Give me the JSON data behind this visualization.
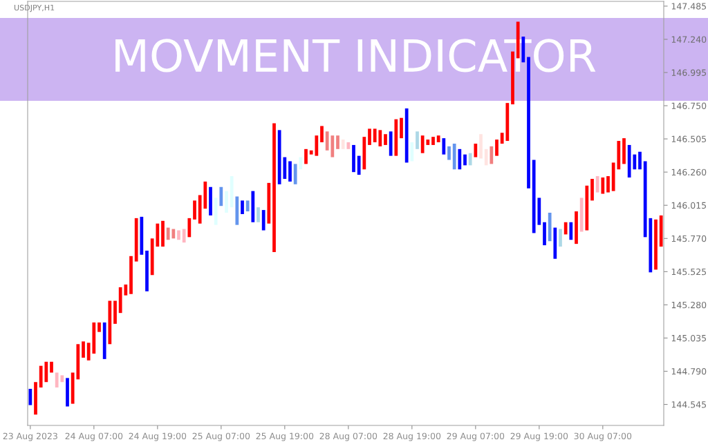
{
  "chart_data": {
    "type": "bar",
    "title": "MOVMENT INDICATOR",
    "subtitle": "USDJPY,H1",
    "categories": [
      "23 Aug 2023",
      null,
      null,
      null,
      null,
      null,
      null,
      null,
      null,
      null,
      null,
      null,
      "24 Aug 07:00",
      null,
      null,
      null,
      null,
      null,
      null,
      null,
      null,
      null,
      null,
      null,
      "24 Aug 19:00",
      null,
      null,
      null,
      null,
      null,
      null,
      null,
      null,
      null,
      null,
      null,
      "25 Aug 07:00",
      null,
      null,
      null,
      null,
      null,
      null,
      null,
      null,
      null,
      null,
      null,
      "25 Aug 19:00",
      null,
      null,
      null,
      null,
      null,
      null,
      null,
      null,
      null,
      null,
      null,
      "28 Aug 07:00",
      null,
      null,
      null,
      null,
      null,
      null,
      null,
      null,
      null,
      null,
      null,
      "28 Aug 19:00",
      null,
      null,
      null,
      null,
      null,
      null,
      null,
      null,
      null,
      null,
      null,
      "29 Aug 07:00",
      null,
      null,
      null,
      null,
      null,
      null,
      null,
      null,
      null,
      null,
      null,
      "29 Aug 19:00",
      null,
      null,
      null,
      null,
      null,
      null,
      null,
      null,
      null,
      null,
      null,
      "30 Aug 07:00",
      null,
      null,
      null,
      null,
      null,
      null,
      null,
      null,
      null,
      null,
      null
    ],
    "base": [
      144.54,
      144.47,
      144.67,
      144.71,
      144.78,
      144.67,
      144.71,
      144.53,
      144.55,
      144.73,
      144.89,
      144.87,
      144.92,
      145.08,
      144.88,
      144.99,
      145.14,
      145.22,
      145.35,
      145.36,
      145.6,
      145.65,
      145.38,
      145.5,
      145.71,
      145.71,
      145.76,
      145.77,
      145.76,
      145.74,
      145.78,
      145.91,
      145.88,
      145.99,
      145.94,
      145.87,
      146.01,
      145.96,
      146.0,
      145.87,
      145.95,
      145.97,
      145.89,
      145.89,
      145.83,
      145.88,
      145.67,
      146.17,
      146.21,
      146.19,
      146.17,
      146.28,
      146.32,
      146.39,
      146.38,
      146.48,
      146.42,
      146.37,
      146.43,
      146.43,
      146.43,
      146.26,
      146.24,
      146.28,
      146.46,
      146.48,
      146.45,
      146.46,
      146.38,
      146.38,
      146.51,
      146.33,
      146.34,
      146.43,
      146.4,
      146.46,
      146.46,
      146.48,
      146.39,
      146.35,
      146.28,
      146.28,
      146.31,
      146.31,
      146.37,
      146.36,
      146.31,
      146.32,
      146.38,
      146.47,
      146.49,
      146.76,
      147.1,
      147.07,
      146.14,
      145.81,
      145.87,
      145.72,
      145.75,
      145.62,
      145.71,
      145.8,
      145.76,
      145.73,
      145.82,
      145.83,
      146.05,
      146.11,
      146.1,
      146.11,
      146.12,
      146.28,
      146.32,
      146.22,
      146.28,
      146.28,
      145.78,
      145.52,
      145.54,
      145.71
    ],
    "values": [
      0.12,
      0.24,
      0.16,
      0.15,
      0.08,
      0.11,
      0.05,
      0.21,
      0.23,
      0.26,
      0.12,
      0.13,
      0.23,
      0.07,
      0.27,
      0.32,
      0.17,
      0.19,
      0.08,
      0.28,
      0.32,
      0.28,
      0.3,
      0.27,
      0.17,
      0.19,
      0.09,
      0.07,
      0.07,
      0.1,
      0.14,
      0.14,
      0.21,
      0.2,
      0.21,
      0.2,
      0.14,
      0.16,
      0.23,
      0.21,
      0.1,
      0.08,
      0.23,
      0.11,
      0.15,
      0.3,
      0.95,
      0.4,
      0.16,
      0.15,
      0.15,
      0.09,
      0.11,
      0.03,
      0.15,
      0.12,
      0.14,
      0.16,
      0.1,
      0.07,
      0.05,
      0.2,
      0.14,
      0.24,
      0.12,
      0.1,
      0.12,
      0.08,
      0.18,
      0.27,
      0.15,
      0.4,
      0.14,
      0.13,
      0.13,
      0.04,
      0.06,
      0.05,
      0.12,
      0.1,
      0.19,
      0.15,
      0.08,
      0.09,
      0.1,
      0.18,
      0.12,
      0.13,
      0.12,
      0.08,
      0.28,
      0.39,
      0.27,
      0.19,
      0.97,
      0.54,
      0.2,
      0.17,
      0.21,
      0.23,
      0.13,
      0.09,
      0.13,
      0.24,
      0.25,
      0.33,
      0.16,
      0.12,
      0.12,
      0.12,
      0.21,
      0.21,
      0.19,
      0.24,
      0.11,
      0.13,
      0.56,
      0.4,
      0.37,
      0.23
    ],
    "colors": [
      "#0000ff",
      "#ff0000",
      "#ff0000",
      "#ff0000",
      "#ff0000",
      "#ffb6c1",
      "#ffb6c1",
      "#0000ff",
      "#ff0000",
      "#ff0000",
      "#ff0000",
      "#ff0000",
      "#ff0000",
      "#ff0000",
      "#0000ff",
      "#ff0000",
      "#ff0000",
      "#ff0000",
      "#ff0000",
      "#ff0000",
      "#ff0000",
      "#0000ff",
      "#0000ff",
      "#ff0000",
      "#ff0000",
      "#ff0000",
      "#f08080",
      "#f08080",
      "#ffb6c1",
      "#ffb6c1",
      "#ff0000",
      "#ff0000",
      "#ff0000",
      "#ff0000",
      "#0000ff",
      "#e0ffff",
      "#6495ed",
      "#e0ffff",
      "#e0ffff",
      "#6495ed",
      "#0000ff",
      "#6495ed",
      "#0000ff",
      "#add8e6",
      "#0000ff",
      "#ff0000",
      "#ff0000",
      "#0000ff",
      "#0000ff",
      "#0000ff",
      "#6495ed",
      "#e0ffff",
      "#ff0000",
      "#ff0000",
      "#ff0000",
      "#ff0000",
      "#f08080",
      "#f08080",
      "#f08080",
      "#ffe4e1",
      "#ffb6c1",
      "#0000ff",
      "#0000ff",
      "#ff0000",
      "#ff0000",
      "#ff0000",
      "#ff0000",
      "#ff0000",
      "#0000ff",
      "#ff0000",
      "#ff0000",
      "#0000ff",
      "#e0ffff",
      "#add8e6",
      "#ff0000",
      "#ff0000",
      "#ff0000",
      "#ff0000",
      "#0000ff",
      "#6495ed",
      "#6495ed",
      "#0000ff",
      "#0000ff",
      "#add8e6",
      "#ff0000",
      "#ffe4e1",
      "#ffe4e1",
      "#f08080",
      "#ff0000",
      "#ff0000",
      "#ff0000",
      "#ff0000",
      "#ff0000",
      "#0000ff",
      "#0000ff",
      "#0000ff",
      "#0000ff",
      "#0000ff",
      "#6495ed",
      "#0000ff",
      "#add8e6",
      "#ff0000",
      "#0000ff",
      "#ff0000",
      "#ffb6c1",
      "#ff0000",
      "#ff0000",
      "#ffb6c1",
      "#ff0000",
      "#ff0000",
      "#ff0000",
      "#ff0000",
      "#ff0000",
      "#0000ff",
      "#0000ff",
      "#0000ff",
      "#0000ff",
      "#0000ff",
      "#ff0000",
      "#ff0000"
    ],
    "ylim": [
      144.39,
      147.52
    ],
    "yticks": [
      147.485,
      {
        "value": 147.24,
        "label": "147.240"
      },
      146.995,
      {
        "value": 146.75,
        "label": "146.750"
      },
      146.505,
      {
        "value": 146.26,
        "label": "146.260"
      },
      146.015,
      {
        "value": 145.77,
        "label": "145.770"
      },
      145.525,
      {
        "value": 145.28,
        "label": "145.280"
      },
      145.035,
      {
        "value": 144.79,
        "label": "144.790"
      },
      144.545
    ]
  }
}
